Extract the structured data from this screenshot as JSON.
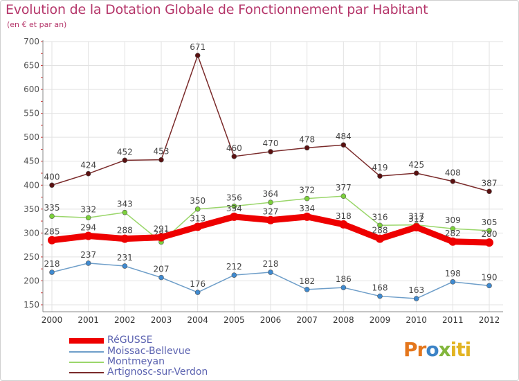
{
  "chart_data": {
    "type": "line",
    "title": "Evolution de la Dotation Globale de Fonctionnement par Habitant",
    "subtitle": "(en € et par an)",
    "xlabel": "",
    "ylabel": "",
    "categories": [
      "2000",
      "2001",
      "2002",
      "2003",
      "2004",
      "2005",
      "2006",
      "2007",
      "2008",
      "2009",
      "2010",
      "2011",
      "2012"
    ],
    "ylim": [
      150,
      700
    ],
    "yticks": [
      150,
      200,
      250,
      300,
      350,
      400,
      450,
      500,
      550,
      600,
      650,
      700
    ],
    "grid": true,
    "legend_position": "bottom-left",
    "series": [
      {
        "name": "Artignosc-sur-Verdon",
        "color": "#7a2a2a",
        "marker": "#5a1010",
        "values": [
          400,
          424,
          452,
          453,
          671,
          460,
          470,
          478,
          484,
          419,
          425,
          408,
          387
        ]
      },
      {
        "name": "Moissac-Bellevue",
        "color": "#6e9ec9",
        "marker": "#3f8ad0",
        "values": [
          218,
          237,
          231,
          207,
          176,
          212,
          218,
          182,
          186,
          168,
          163,
          198,
          190
        ]
      },
      {
        "name": "Montmeyan",
        "color": "#9ad66a",
        "marker": "#7cd03c",
        "values": [
          335,
          332,
          343,
          281,
          350,
          356,
          364,
          372,
          377,
          316,
          317,
          309,
          305
        ]
      },
      {
        "name": "RéGUSSE",
        "color": "#ee0000",
        "marker": "#ee0000",
        "values": [
          285,
          294,
          288,
          291,
          313,
          334,
          327,
          334,
          318,
          288,
          312,
          282,
          280
        ]
      }
    ],
    "legend": [
      "RéGUSSE",
      "Moissac-Bellevue",
      "Montmeyan",
      "Artignosc-sur-Verdon"
    ]
  },
  "colors": {
    "title": "#b5366a",
    "axis_text": "#555555",
    "legend_text": "#5b62b0",
    "grid": "#e2e2e2"
  },
  "logo": {
    "part1": "Pr",
    "part2": "o",
    "part3": "x",
    "part4": "iti"
  }
}
